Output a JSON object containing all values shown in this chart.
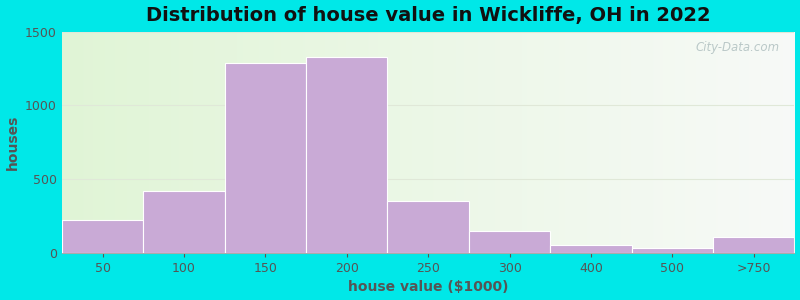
{
  "title": "Distribution of house value in Wickliffe, OH in 2022",
  "xlabel": "house value ($1000)",
  "ylabel": "houses",
  "bar_labels": [
    "50",
    "100",
    "150",
    "200",
    "250",
    "300",
    "400",
    "500",
    ">750"
  ],
  "bar_values": [
    220,
    420,
    1290,
    1330,
    355,
    145,
    50,
    30,
    105
  ],
  "bar_color": "#c9aad6",
  "bar_edgecolor": "#ffffff",
  "ylim": [
    0,
    1500
  ],
  "yticks": [
    0,
    500,
    1000,
    1500
  ],
  "background_outer": "#00e8e8",
  "background_inner": "#eef5e8",
  "title_fontsize": 14,
  "axis_label_fontsize": 10,
  "tick_fontsize": 9,
  "title_color": "#111111",
  "axis_label_color": "#555555",
  "tick_color": "#555555",
  "watermark_text": "City-Data.com",
  "watermark_color": "#b0c0c0",
  "grid_color": "#e0e8d8",
  "grid_alpha": 1.0,
  "figsize": [
    8.0,
    3.0
  ],
  "dpi": 100
}
